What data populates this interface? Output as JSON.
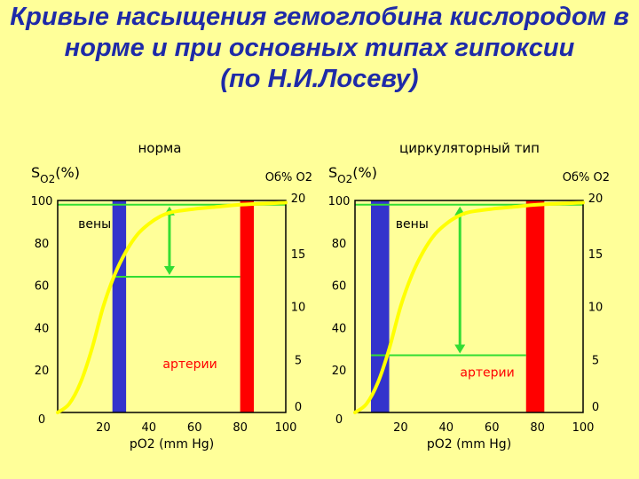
{
  "title_lines": [
    "Кривые насыщения гемоглобина кислородом в",
    "норме и при основных типах гипоксии",
    "(по Н.И.Лосеву)"
  ],
  "colors": {
    "background": "#ffff99",
    "title": "#1e2aa8",
    "curve": "#ffff00",
    "vein_bar": "#3333cc",
    "artery_bar": "#ff0000",
    "arrow": "#33dd33",
    "frame": "#000000",
    "artery_label": "#ff0000"
  },
  "chart_data": [
    {
      "type": "line",
      "title": "норма",
      "ylabel_main": "S",
      "ylabel_sub": "O2",
      "ylabel_unit": "(%)",
      "y2label": "Об% О2",
      "xlabel": "pO2 (mm Hg)",
      "x_ticks": [
        "20",
        "40",
        "60",
        "80",
        "100"
      ],
      "x_tick_values": [
        20,
        40,
        60,
        80,
        100
      ],
      "x_zero_label": "0",
      "y_ticks": [
        "100",
        "80",
        "60",
        "40",
        "20"
      ],
      "y_tick_values": [
        100,
        80,
        60,
        40,
        20
      ],
      "y2_ticks": [
        "20",
        "15",
        "10",
        "5",
        "0"
      ],
      "y2_tick_values": [
        20,
        15,
        10,
        5,
        0
      ],
      "xlim": [
        0,
        100
      ],
      "ylim": [
        0,
        100
      ],
      "y2lim": [
        0,
        20
      ],
      "vein_label": "вены",
      "artery_label": "артерии",
      "vein_bar_x": [
        24,
        30
      ],
      "artery_bar_x": [
        80,
        86
      ],
      "curve": [
        [
          0,
          0
        ],
        [
          5,
          4
        ],
        [
          10,
          14
        ],
        [
          15,
          30
        ],
        [
          20,
          50
        ],
        [
          25,
          65
        ],
        [
          30,
          76
        ],
        [
          35,
          84
        ],
        [
          40,
          89
        ],
        [
          45,
          92.5
        ],
        [
          50,
          94.5
        ],
        [
          60,
          96
        ],
        [
          70,
          97
        ],
        [
          80,
          98
        ],
        [
          100,
          99
        ]
      ],
      "vein_saturation": 64,
      "artery_saturation": 98,
      "arrow_x": 49
    },
    {
      "type": "line",
      "title": "циркуляторный тип",
      "ylabel_main": "S",
      "ylabel_sub": "O2",
      "ylabel_unit": "(%)",
      "y2label": "Об% О2",
      "xlabel": "pO2 (mm Hg)",
      "x_ticks": [
        "20",
        "40",
        "60",
        "80",
        "100"
      ],
      "x_tick_values": [
        20,
        40,
        60,
        80,
        100
      ],
      "x_zero_label": "0",
      "y_ticks": [
        "100",
        "80",
        "60",
        "40",
        "20"
      ],
      "y_tick_values": [
        100,
        80,
        60,
        40,
        20
      ],
      "y2_ticks": [
        "20",
        "15",
        "10",
        "5",
        "0"
      ],
      "y2_tick_values": [
        20,
        15,
        10,
        5,
        0
      ],
      "xlim": [
        0,
        100
      ],
      "ylim": [
        0,
        100
      ],
      "y2lim": [
        0,
        20
      ],
      "vein_label": "вены",
      "artery_label": "артерии",
      "vein_bar_x": [
        7,
        15
      ],
      "artery_bar_x": [
        75,
        83
      ],
      "curve": [
        [
          0,
          0
        ],
        [
          5,
          4
        ],
        [
          10,
          14
        ],
        [
          15,
          30
        ],
        [
          20,
          50
        ],
        [
          25,
          65
        ],
        [
          30,
          76
        ],
        [
          35,
          84
        ],
        [
          40,
          89
        ],
        [
          45,
          92.5
        ],
        [
          50,
          94.5
        ],
        [
          60,
          96
        ],
        [
          70,
          97
        ],
        [
          80,
          98
        ],
        [
          100,
          99
        ]
      ],
      "vein_saturation": 27,
      "artery_saturation": 98,
      "arrow_x": 46
    }
  ]
}
